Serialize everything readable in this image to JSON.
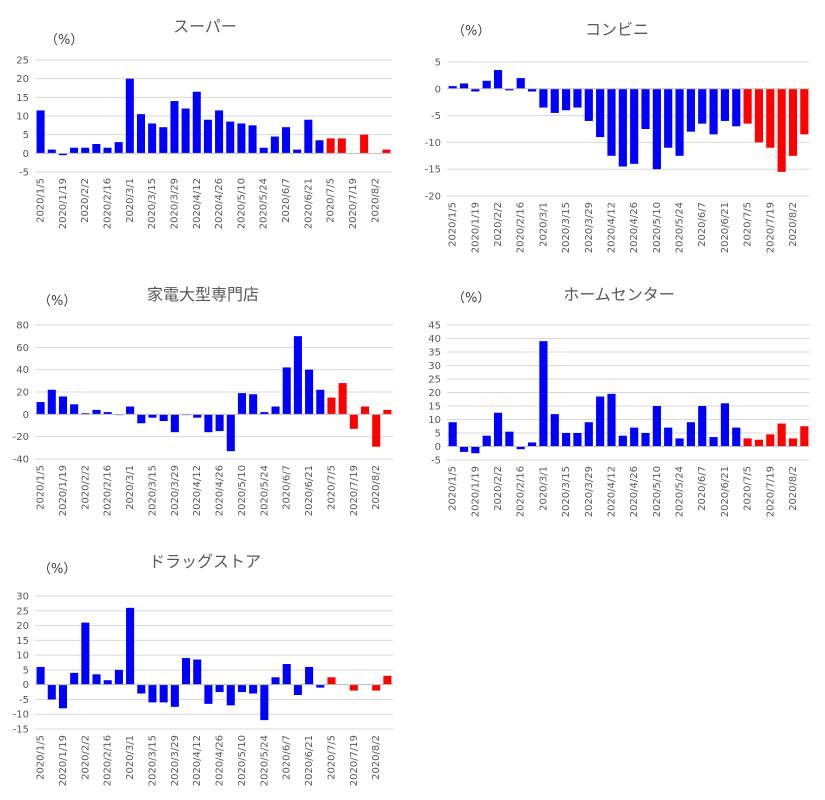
{
  "chart_data": [
    {
      "type": "bar",
      "title": "スーパー",
      "unit_label": "（%）",
      "ylim": [
        -5,
        25
      ],
      "yticks": [
        -5,
        0,
        5,
        10,
        15,
        20,
        25
      ],
      "xtick_labels": [
        "2020/1/5",
        "2020/1/19",
        "2020/2/2",
        "2020/2/16",
        "2020/3/1",
        "2020/3/15",
        "2020/3/29",
        "2020/4/12",
        "2020/4/26",
        "2020/5/10",
        "2020/5/24",
        "2020/6/7",
        "2020/6/21",
        "2020/7/5",
        "2020/7/19",
        "2020/8/2"
      ],
      "values": [
        11.5,
        1,
        -0.5,
        1.5,
        1.5,
        2.5,
        1.5,
        3,
        20,
        10.5,
        8,
        7,
        14,
        12,
        16.5,
        9,
        11.5,
        8.5,
        8,
        7.5,
        1.5,
        4.5,
        7,
        1,
        9,
        3.5,
        4,
        4,
        null,
        5,
        null,
        1
      ],
      "series_colors": {
        "actual": "#0000ff",
        "highlight": "#ff0000"
      },
      "highlight_from_index": 26
    },
    {
      "type": "bar",
      "title": "コンビニ",
      "unit_label": "（%）",
      "ylim": [
        -20,
        5
      ],
      "yticks": [
        -20,
        -15,
        -10,
        -5,
        0,
        5
      ],
      "xtick_labels": [
        "2020/1/5",
        "2020/1/19",
        "2020/2/2",
        "2020/2/16",
        "2020/3/1",
        "2020/3/15",
        "2020/3/29",
        "2020/4/12",
        "2020/4/26",
        "2020/5/10",
        "2020/5/24",
        "2020/6/7",
        "2020/6/21",
        "2020/7/5",
        "2020/7/19",
        "2020/8/2"
      ],
      "values": [
        0.5,
        1,
        -0.5,
        1.5,
        3.5,
        -0.3,
        2,
        -0.5,
        -3.5,
        -4.5,
        -4,
        -3.5,
        -6,
        -9,
        -12.5,
        -14.5,
        -14,
        -7.5,
        -15,
        -11,
        -12.5,
        -8,
        -6.5,
        -8.5,
        -6,
        -7,
        -6.5,
        -10,
        -11,
        -15.5,
        -12.5,
        -8.5
      ],
      "series_colors": {
        "actual": "#0000ff",
        "highlight": "#ff0000"
      },
      "highlight_from_index": 26
    },
    {
      "type": "bar",
      "title": "家電大型専門店",
      "unit_label": "（%）",
      "ylim": [
        -40,
        80
      ],
      "yticks": [
        -40,
        -20,
        0,
        20,
        40,
        60,
        80
      ],
      "xtick_labels": [
        "2020/1/5",
        "2020/1/19",
        "2020/2/2",
        "2020/2/16",
        "2020/3/1",
        "2020/3/15",
        "2020/3/29",
        "2020/4/12",
        "2020/4/26",
        "2020/5/10",
        "2020/5/24",
        "2020/6/7",
        "2020/6/21",
        "2020/7/5",
        "2020/7/19",
        "2020/8/2"
      ],
      "values": [
        11,
        22,
        16,
        9,
        1,
        4,
        2,
        0,
        7,
        -8,
        -3,
        -6,
        -16,
        0,
        -3,
        -16,
        -15,
        -33,
        19,
        18,
        2,
        7,
        42,
        70,
        40,
        22,
        15,
        28,
        -13,
        7,
        -29,
        4
      ],
      "series_colors": {
        "actual": "#0000ff",
        "highlight": "#ff0000"
      },
      "highlight_from_index": 26
    },
    {
      "type": "bar",
      "title": "ホームセンター",
      "unit_label": "（%）",
      "ylim": [
        -5,
        45
      ],
      "yticks": [
        -5,
        0,
        5,
        10,
        15,
        20,
        25,
        30,
        35,
        40,
        45
      ],
      "xtick_labels": [
        "2020/1/5",
        "2020/1/19",
        "2020/2/2",
        "2020/2/16",
        "2020/3/1",
        "2020/3/15",
        "2020/3/29",
        "2020/4/12",
        "2020/4/26",
        "2020/5/10",
        "2020/5/24",
        "2020/6/7",
        "2020/6/21",
        "2020/7/5",
        "2020/7/19",
        "2020/8/2"
      ],
      "values": [
        9,
        -2,
        -2.5,
        4,
        12.5,
        5.5,
        -1,
        1.5,
        39,
        12,
        5,
        5,
        9,
        18.5,
        19.5,
        4,
        7,
        5,
        15,
        7,
        3,
        9,
        15,
        3.5,
        16,
        7,
        3,
        2.5,
        4.5,
        8.5,
        3,
        7.5
      ],
      "series_colors": {
        "actual": "#0000ff",
        "highlight": "#ff0000"
      },
      "highlight_from_index": 26
    },
    {
      "type": "bar",
      "title": "ドラッグストア",
      "unit_label": "（%）",
      "ylim": [
        -15,
        30
      ],
      "yticks": [
        -15,
        -10,
        -5,
        0,
        5,
        10,
        15,
        20,
        25,
        30
      ],
      "xtick_labels": [
        "2020/1/5",
        "2020/1/19",
        "2020/2/2",
        "2020/2/16",
        "2020/3/1",
        "2020/3/15",
        "2020/3/29",
        "2020/4/12",
        "2020/4/26",
        "2020/5/10",
        "2020/5/24",
        "2020/6/7",
        "2020/6/21",
        "2020/7/5",
        "2020/7/19",
        "2020/8/2"
      ],
      "values": [
        6,
        -5,
        -8,
        4,
        21,
        3.5,
        1.5,
        5,
        26,
        -3,
        -6,
        -6,
        -7.5,
        9,
        8.5,
        -6.5,
        -2.5,
        -7,
        -2.5,
        -3,
        -12,
        2.5,
        7,
        -3.5,
        6,
        -1,
        2.5,
        null,
        -2,
        null,
        -2,
        3
      ],
      "series_colors": {
        "actual": "#0000ff",
        "highlight": "#ff0000"
      },
      "highlight_from_index": 26
    }
  ]
}
